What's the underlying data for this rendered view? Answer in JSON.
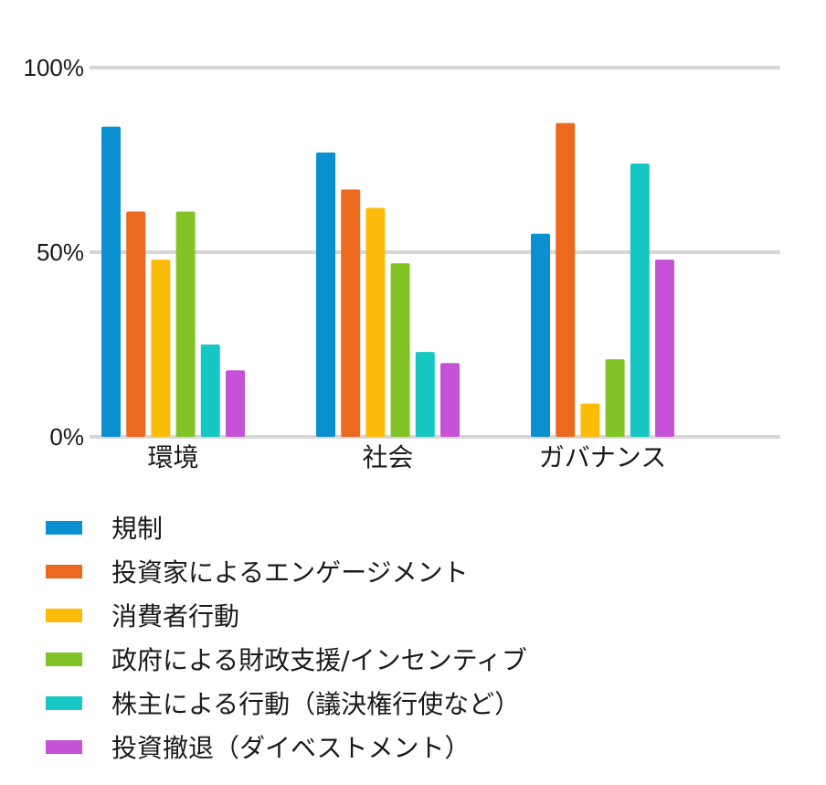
{
  "chart_data": {
    "type": "bar",
    "title": "",
    "xlabel": "",
    "ylabel": "",
    "ylim": [
      0,
      100
    ],
    "yticks": [
      0,
      50,
      100
    ],
    "ytick_labels": [
      "0%",
      "50%",
      "100%"
    ],
    "grid": true,
    "legend_position": "bottom",
    "categories": [
      "環境",
      "社会",
      "ガバナンス"
    ],
    "series": [
      {
        "name": "規制",
        "color": "#0a8fd0",
        "values": [
          84,
          77,
          55
        ]
      },
      {
        "name": "投資家によるエンゲージメント",
        "color": "#ec6a1f",
        "values": [
          61,
          67,
          85
        ]
      },
      {
        "name": "消費者行動",
        "color": "#fdbb09",
        "values": [
          48,
          62,
          9
        ]
      },
      {
        "name": "政府による財政支援/インセンティブ",
        "color": "#82c426",
        "values": [
          61,
          47,
          21
        ]
      },
      {
        "name": "株主による行動（議決権行使など）",
        "color": "#16c7c4",
        "values": [
          25,
          23,
          74
        ]
      },
      {
        "name": "投資撤退（ダイベストメント）",
        "color": "#c653d7",
        "values": [
          18,
          20,
          48
        ]
      }
    ]
  }
}
